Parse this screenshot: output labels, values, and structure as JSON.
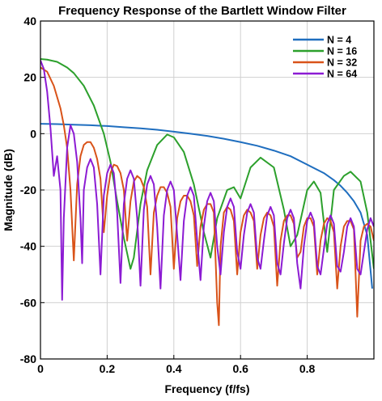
{
  "chart_data": {
    "type": "line",
    "title": "Frequency Response of the Bartlett Window Filter",
    "xlabel": "Frequency (f/fs)",
    "ylabel": "Magnitude (dB)",
    "xlim": [
      0,
      1
    ],
    "ylim": [
      -80,
      40
    ],
    "xticks": [
      0,
      0.2,
      0.4,
      0.6,
      0.8
    ],
    "xtick_labels": [
      "0",
      "0.2",
      "0.4",
      "0.6",
      "0.8"
    ],
    "yticks": [
      40,
      20,
      0,
      -20,
      -40,
      -60,
      -80
    ],
    "ytick_labels": [
      "40",
      "20",
      "0",
      "-20",
      "-40",
      "-60",
      "-80"
    ],
    "grid": true,
    "legend_position": "top-right",
    "series": [
      {
        "name": "N = 4",
        "color": "#1f6ebf",
        "x": [
          0,
          0.05,
          0.1,
          0.15,
          0.2,
          0.25,
          0.3,
          0.35,
          0.4,
          0.45,
          0.5,
          0.55,
          0.6,
          0.65,
          0.7,
          0.75,
          0.8,
          0.85,
          0.88,
          0.9,
          0.92,
          0.94,
          0.96,
          0.98,
          0.995
        ],
        "y": [
          3.5,
          3.4,
          3.2,
          3,
          2.7,
          2.3,
          1.9,
          1.4,
          0.7,
          0,
          -0.8,
          -1.8,
          -3,
          -4.3,
          -6,
          -8,
          -11,
          -14,
          -16.5,
          -18.5,
          -21,
          -24,
          -28,
          -36,
          -55
        ]
      },
      {
        "name": "N = 16",
        "color": "#2ca02c",
        "x": [
          0,
          0.02,
          0.05,
          0.08,
          0.1,
          0.13,
          0.16,
          0.19,
          0.21,
          0.23,
          0.25,
          0.27,
          0.28,
          0.3,
          0.32,
          0.35,
          0.38,
          0.4,
          0.43,
          0.46,
          0.49,
          0.51,
          0.53,
          0.56,
          0.58,
          0.6,
          0.63,
          0.66,
          0.7,
          0.73,
          0.75,
          0.77,
          0.8,
          0.82,
          0.84,
          0.86,
          0.88,
          0.91,
          0.93,
          0.96,
          0.98,
          1.0
        ],
        "y": [
          26.5,
          26.3,
          25.5,
          23.5,
          21.5,
          17,
          10,
          0,
          -10,
          -24,
          -37,
          -48,
          -44,
          -25,
          -13,
          -4,
          -0.3,
          -1.3,
          -6.5,
          -18,
          -35,
          -44,
          -30,
          -20,
          -19,
          -23,
          -12,
          -8.5,
          -12,
          -27,
          -40,
          -36,
          -20,
          -17,
          -21,
          -42,
          -20,
          -15,
          -13.5,
          -17,
          -28,
          -48
        ]
      },
      {
        "name": "N = 32",
        "color": "#d95319",
        "x": [
          0,
          0.02,
          0.04,
          0.06,
          0.07,
          0.08,
          0.09,
          0.1,
          0.11,
          0.12,
          0.13,
          0.14,
          0.15,
          0.16,
          0.17,
          0.18,
          0.19,
          0.2,
          0.21,
          0.22,
          0.23,
          0.24,
          0.25,
          0.26,
          0.27,
          0.28,
          0.29,
          0.3,
          0.31,
          0.32,
          0.33,
          0.34,
          0.35,
          0.36,
          0.37,
          0.38,
          0.39,
          0.4,
          0.41,
          0.42,
          0.43,
          0.44,
          0.45,
          0.46,
          0.47,
          0.48,
          0.49,
          0.5,
          0.51,
          0.52,
          0.53,
          0.535,
          0.54,
          0.55,
          0.56,
          0.57,
          0.58,
          0.59,
          0.6,
          0.61,
          0.62,
          0.63,
          0.64,
          0.65,
          0.66,
          0.67,
          0.68,
          0.69,
          0.7,
          0.71,
          0.72,
          0.73,
          0.74,
          0.75,
          0.76,
          0.77,
          0.78,
          0.79,
          0.8,
          0.81,
          0.82,
          0.83,
          0.84,
          0.85,
          0.86,
          0.87,
          0.88,
          0.89,
          0.9,
          0.91,
          0.92,
          0.93,
          0.94,
          0.95,
          0.96,
          0.97,
          0.98,
          0.99,
          1.0
        ],
        "y": [
          23.5,
          22,
          17,
          9,
          3,
          -5,
          -20,
          -45,
          -18,
          -8,
          -4,
          -3,
          -3,
          -5,
          -9,
          -16,
          -35,
          -22,
          -14,
          -11,
          -11.5,
          -14,
          -20,
          -38,
          -24,
          -17,
          -15,
          -16,
          -19,
          -26,
          -50,
          -28,
          -22,
          -19,
          -19,
          -21,
          -26,
          -48,
          -30,
          -24,
          -22,
          -22,
          -24,
          -29,
          -47,
          -33,
          -27,
          -25,
          -25,
          -28,
          -60,
          -68,
          -40,
          -28,
          -26,
          -27,
          -31,
          -50,
          -35,
          -29,
          -27,
          -28,
          -31,
          -48,
          -36,
          -30,
          -28,
          -29,
          -33,
          -54,
          -38,
          -31,
          -29,
          -29,
          -32,
          -44,
          -42,
          -33,
          -30,
          -30,
          -33,
          -50,
          -38,
          -32,
          -30,
          -31,
          -35,
          -55,
          -40,
          -33,
          -31,
          -31,
          -34,
          -65,
          -38,
          -33,
          -32,
          -33,
          -38
        ]
      },
      {
        "name": "N = 64",
        "color": "#8c1bd3",
        "x": [
          0,
          0.01,
          0.02,
          0.03,
          0.04,
          0.05,
          0.06,
          0.065,
          0.07,
          0.08,
          0.09,
          0.1,
          0.11,
          0.12,
          0.125,
          0.13,
          0.14,
          0.15,
          0.16,
          0.17,
          0.18,
          0.19,
          0.2,
          0.21,
          0.22,
          0.23,
          0.24,
          0.25,
          0.26,
          0.27,
          0.28,
          0.29,
          0.3,
          0.31,
          0.32,
          0.33,
          0.34,
          0.35,
          0.36,
          0.37,
          0.38,
          0.39,
          0.4,
          0.41,
          0.42,
          0.43,
          0.44,
          0.45,
          0.46,
          0.47,
          0.48,
          0.49,
          0.5,
          0.51,
          0.52,
          0.53,
          0.54,
          0.55,
          0.56,
          0.57,
          0.58,
          0.59,
          0.6,
          0.61,
          0.62,
          0.63,
          0.64,
          0.65,
          0.66,
          0.67,
          0.68,
          0.69,
          0.7,
          0.71,
          0.72,
          0.73,
          0.74,
          0.75,
          0.76,
          0.77,
          0.78,
          0.79,
          0.8,
          0.81,
          0.82,
          0.83,
          0.84,
          0.85,
          0.86,
          0.87,
          0.88,
          0.89,
          0.9,
          0.91,
          0.92,
          0.93,
          0.94,
          0.95,
          0.96,
          0.97,
          0.98,
          0.99,
          1.0
        ],
        "y": [
          26,
          23,
          15,
          2,
          -15,
          -8,
          -20,
          -59,
          -30,
          -5,
          3,
          0,
          -10,
          -30,
          -46,
          -20,
          -12,
          -9,
          -12,
          -25,
          -50,
          -22,
          -14,
          -11,
          -14,
          -28,
          -53,
          -25,
          -16,
          -13,
          -16,
          -30,
          -54,
          -27,
          -18,
          -15,
          -18,
          -33,
          -55,
          -29,
          -20,
          -17,
          -20,
          -36,
          -52,
          -31,
          -22,
          -19,
          -22,
          -38,
          -52,
          -33,
          -24,
          -21,
          -24,
          -40,
          -50,
          -35,
          -26,
          -23,
          -26,
          -42,
          -48,
          -36,
          -28,
          -25,
          -28,
          -44,
          -48,
          -38,
          -29,
          -26,
          -29,
          -46,
          -50,
          -39,
          -30,
          -27,
          -30,
          -46,
          -55,
          -40,
          -31,
          -28,
          -31,
          -47,
          -50,
          -41,
          -32,
          -29,
          -32,
          -47,
          -49,
          -42,
          -33,
          -30,
          -33,
          -48,
          -50,
          -42,
          -34,
          -30,
          -33
        ]
      }
    ]
  }
}
